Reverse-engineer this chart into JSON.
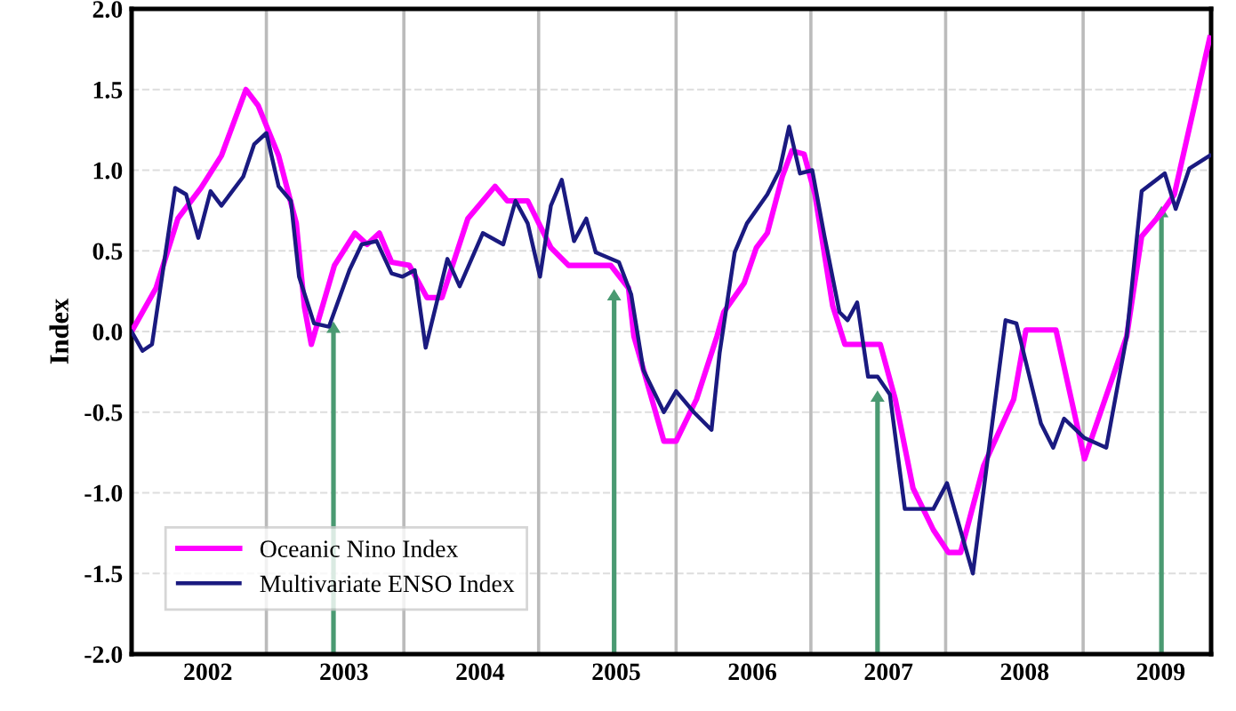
{
  "chart_data": {
    "type": "line",
    "ylabel": "Index",
    "x": [
      2001.44,
      2001.54,
      2001.62,
      2001.78,
      2001.95,
      2002.1,
      2002.28,
      2002.37,
      2002.52,
      2002.65,
      2002.71,
      2002.76,
      2002.93,
      2003.08,
      2003.17,
      2003.26,
      2003.35,
      2003.48,
      2003.61,
      2003.72,
      2003.91,
      2004.11,
      2004.2,
      2004.35,
      2004.52,
      2004.65,
      2004.96,
      2005.09,
      2005.13,
      2005.35,
      2005.44,
      2005.59,
      2005.74,
      2005.79,
      2005.94,
      2006.03,
      2006.11,
      2006.22,
      2006.29,
      2006.38,
      2006.46,
      2006.59,
      2006.68,
      2006.94,
      2007.05,
      2007.18,
      2007.33,
      2007.44,
      2007.53,
      2007.7,
      2007.92,
      2008.01,
      2008.23,
      2008.44,
      2008.75,
      2008.86,
      2009.01,
      2009.1,
      2009.36
    ],
    "series": [
      {
        "name": "Oceanic Nino Index",
        "color": "#ff00ff",
        "values": [
          0.0,
          0.15,
          0.27,
          0.7,
          0.89,
          1.09,
          1.5,
          1.4,
          1.09,
          0.67,
          0.15,
          -0.08,
          0.41,
          0.61,
          0.54,
          0.61,
          0.43,
          0.41,
          0.21,
          0.21,
          0.7,
          0.9,
          0.81,
          0.81,
          0.52,
          0.41,
          0.41,
          0.27,
          -0.03,
          -0.68,
          -0.68,
          -0.42,
          -0.03,
          0.12,
          0.3,
          0.52,
          0.61,
          0.96,
          1.12,
          1.1,
          0.85,
          0.16,
          -0.08,
          -0.08,
          -0.42,
          -0.97,
          -1.23,
          -1.37,
          -1.37,
          -0.83,
          -0.42,
          0.01,
          0.01,
          -0.79,
          -0.03,
          0.59,
          0.74,
          0.85,
          1.82
        ]
      },
      {
        "name": "Multivariate ENSO Index",
        "color": "#1a1a80",
        "x": [
          2001.44,
          2001.52,
          2001.59,
          2001.76,
          2001.84,
          2001.93,
          2002.02,
          2002.1,
          2002.26,
          2002.34,
          2002.43,
          2002.52,
          2002.61,
          2002.67,
          2002.78,
          2002.89,
          2003.04,
          2003.13,
          2003.24,
          2003.35,
          2003.43,
          2003.52,
          2003.6,
          2003.76,
          2003.85,
          2004.02,
          2004.17,
          2004.26,
          2004.35,
          2004.44,
          2004.52,
          2004.6,
          2004.69,
          2004.78,
          2004.85,
          2005.02,
          2005.11,
          2005.2,
          2005.35,
          2005.44,
          2005.57,
          2005.7,
          2005.76,
          2005.87,
          2005.96,
          2006.11,
          2006.2,
          2006.27,
          2006.35,
          2006.44,
          2006.53,
          2006.64,
          2006.7,
          2006.77,
          2006.85,
          2006.92,
          2007.01,
          2007.12,
          2007.33,
          2007.43,
          2007.62,
          2007.86,
          2007.94,
          2008.12,
          2008.21,
          2008.29,
          2008.44,
          2008.6,
          2008.75,
          2008.86,
          2009.03,
          2009.11,
          2009.21,
          2009.36
        ],
        "values": [
          0.0,
          -0.12,
          -0.08,
          0.89,
          0.85,
          0.58,
          0.87,
          0.78,
          0.96,
          1.16,
          1.23,
          0.9,
          0.81,
          0.34,
          0.05,
          0.03,
          0.38,
          0.54,
          0.56,
          0.36,
          0.34,
          0.38,
          -0.1,
          0.45,
          0.28,
          0.61,
          0.54,
          0.81,
          0.67,
          0.34,
          0.78,
          0.94,
          0.56,
          0.7,
          0.49,
          0.43,
          0.23,
          -0.24,
          -0.5,
          -0.37,
          -0.5,
          -0.61,
          -0.13,
          0.49,
          0.67,
          0.85,
          1.0,
          1.27,
          0.98,
          1.0,
          0.59,
          0.12,
          0.07,
          0.18,
          -0.28,
          -0.28,
          -0.39,
          -1.1,
          -1.1,
          -0.94,
          -1.5,
          0.07,
          0.05,
          -0.57,
          -0.72,
          -0.54,
          -0.66,
          -0.72,
          -0.03,
          0.87,
          0.98,
          0.76,
          1.01,
          1.09
        ]
      }
    ],
    "xlim": [
      2001.44,
      2009.37
    ],
    "xticks": [
      2002,
      2003,
      2004,
      2005,
      2006,
      2007,
      2008,
      2009
    ],
    "ylim": [
      -2.0,
      2.0
    ],
    "yticks": [
      {
        "value": -2.0,
        "label": "-2.0"
      },
      {
        "value": -1.5,
        "label": "-1.5"
      },
      {
        "value": -1.0,
        "label": "-1.0"
      },
      {
        "value": -0.5,
        "label": "-0.5"
      },
      {
        "value": 0.0,
        "label": "0.0"
      },
      {
        "value": 0.5,
        "label": "0.5"
      },
      {
        "value": 1.0,
        "label": "1.0"
      },
      {
        "value": 1.5,
        "label": "1.5"
      },
      {
        "value": 2.0,
        "label": "2.0"
      }
    ],
    "ref_lines": [
      {
        "axis": "x",
        "value": 2002.43,
        "color": "#bbbbbb"
      },
      {
        "axis": "x",
        "value": 2003.44,
        "color": "#bbbbbb"
      },
      {
        "axis": "x",
        "value": 2004.43,
        "color": "#bbbbbb"
      },
      {
        "axis": "x",
        "value": 2005.44,
        "color": "#bbbbbb"
      },
      {
        "axis": "x",
        "value": 2006.43,
        "color": "#bbbbbb"
      },
      {
        "axis": "x",
        "value": 2007.42,
        "color": "#bbbbbb"
      },
      {
        "axis": "x",
        "value": 2008.43,
        "color": "#bbbbbb"
      }
    ],
    "grid": "y",
    "legend": "bottom left",
    "marker": "none",
    "line_style": "solid"
  }
}
